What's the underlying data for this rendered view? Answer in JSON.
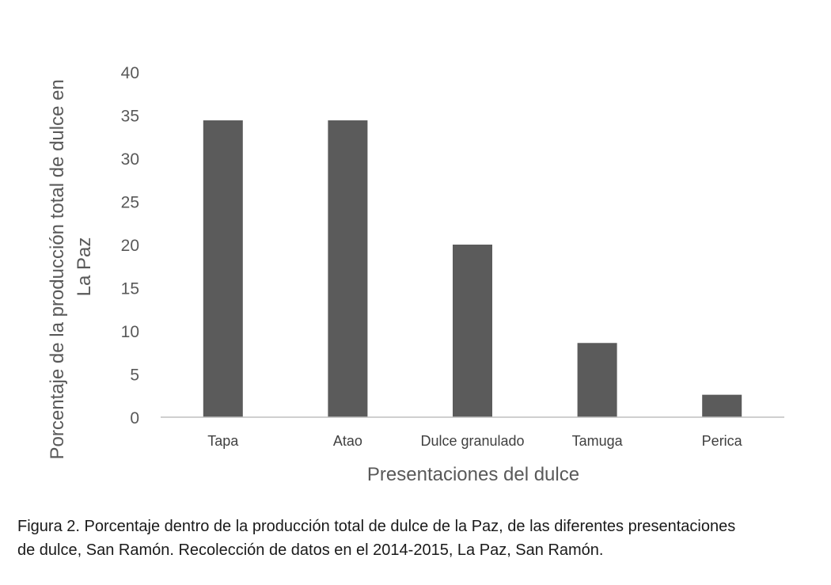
{
  "colors": {
    "bar": "#5b5b5b",
    "axis": "#bfbfbf",
    "text": "#595959"
  },
  "chart_data": {
    "type": "bar",
    "categories": [
      "Tapa",
      "Atao",
      "Dulce granulado",
      "Tamuga",
      "Perica"
    ],
    "values": [
      34.4,
      34.4,
      20.0,
      8.6,
      2.6
    ],
    "xlabel": "Presentaciones del dulce",
    "ylabel_lines": [
      "Porcentaje de la producción total de dulce en",
      "La Paz"
    ],
    "ylim": [
      0,
      40
    ],
    "yticks": [
      "0",
      "5",
      "10",
      "15",
      "20",
      "25",
      "30",
      "35",
      "40"
    ],
    "grid": false,
    "legend": "none"
  },
  "caption": {
    "line1": "Figura 2. Porcentaje dentro de la producción total de dulce de la Paz, de las diferentes presentaciones",
    "line2": "de dulce, San Ramón. Recolección de datos en el 2014-2015, La Paz, San Ramón."
  }
}
